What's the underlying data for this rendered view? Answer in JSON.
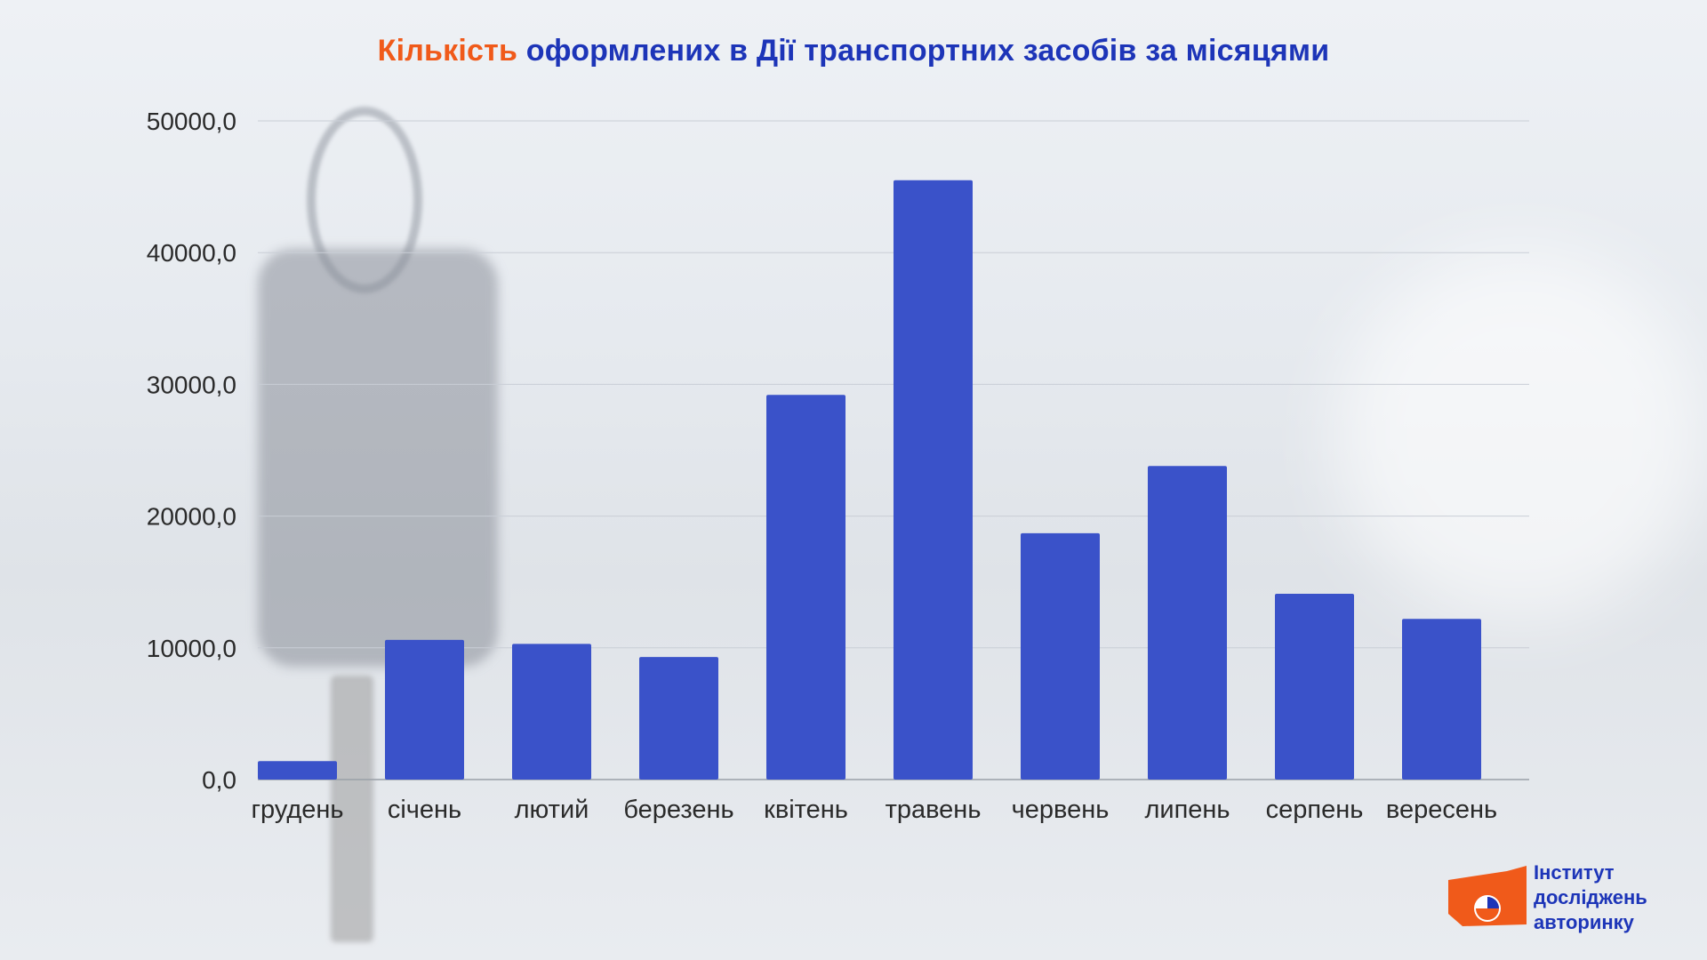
{
  "title": {
    "accent": "Кількість",
    "rest": " оформлених в Дії транспортних засобів за місяцями"
  },
  "colors": {
    "bar": "#3a52c9",
    "title": "#1d35b8",
    "accent": "#f05a1a",
    "grid": "#c9ced6",
    "text": "#2a2a2a"
  },
  "logo": {
    "line1": "Інститут",
    "line2": "досліджень",
    "line3": "авторинку",
    "icon": "logo-flag-icon"
  },
  "chart_data": {
    "type": "bar",
    "categories": [
      "грудень",
      "січень",
      "лютий",
      "березень",
      "квітень",
      "травень",
      "червень",
      "липень",
      "серпень",
      "вересень"
    ],
    "values": [
      1400,
      10600,
      10300,
      9300,
      29200,
      45500,
      18700,
      23800,
      14100,
      12200
    ],
    "title": "Кількість оформлених в Дії транспортних засобів за місяцями",
    "xlabel": "",
    "ylabel": "",
    "ylim": [
      0,
      50000
    ],
    "yticks": [
      "0,0",
      "10000,0",
      "20000,0",
      "30000,0",
      "40000,0",
      "50000,0"
    ],
    "grid": true,
    "legend": "none"
  }
}
